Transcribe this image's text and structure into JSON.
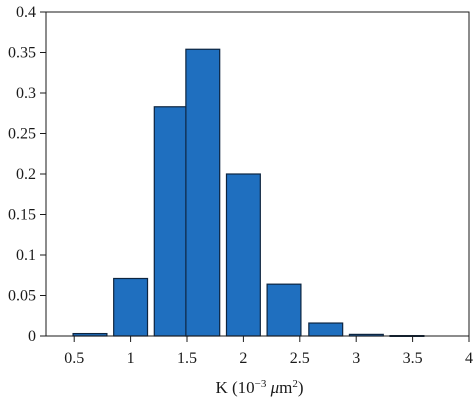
{
  "chart_data": {
    "type": "bar",
    "bar_color": "#1f6fbf",
    "bar_edge_color": "#0d2540",
    "x": [
      0.64,
      1.0,
      1.36,
      1.64,
      2.0,
      2.36,
      2.73,
      3.09,
      3.45
    ],
    "values": [
      0.003,
      0.071,
      0.283,
      0.354,
      0.2,
      0.064,
      0.016,
      0.002,
      0.0005
    ],
    "bin_width": 0.3,
    "xlim": [
      0.25,
      4.0
    ],
    "ylim": [
      0,
      0.4
    ],
    "x_ticks": [
      0.5,
      1,
      1.5,
      2,
      2.5,
      3,
      3.5,
      4
    ],
    "x_tick_labels": [
      "0.5",
      "1",
      "1.5",
      "2",
      "2.5",
      "3",
      "3.5",
      "4"
    ],
    "y_ticks": [
      0,
      0.05,
      0.1,
      0.15,
      0.2,
      0.25,
      0.3,
      0.35,
      0.4
    ],
    "y_tick_labels": [
      "0",
      "0.05",
      "0.1",
      "0.15",
      "0.2",
      "0.25",
      "0.3",
      "0.35",
      "0.4"
    ],
    "xlabel": {
      "prefix": "K (10",
      "exponent": "−3",
      "unit_symbol": "μ",
      "unit": "m",
      "unit_exponent": "2",
      "suffix": ")"
    },
    "ylabel": "",
    "title": "",
    "grid": false,
    "legend": "none"
  }
}
